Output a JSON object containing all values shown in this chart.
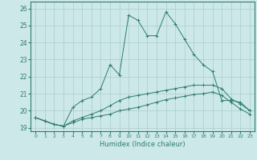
{
  "background_color": "#cde8e8",
  "grid_color": "#aacccc",
  "line_color": "#2e7d6e",
  "xlabel": "Humidex (Indice chaleur)",
  "ylim": [
    18.8,
    26.4
  ],
  "xlim": [
    -0.5,
    23.5
  ],
  "yticks": [
    19,
    20,
    21,
    22,
    23,
    24,
    25,
    26
  ],
  "xticks": [
    0,
    1,
    2,
    3,
    4,
    5,
    6,
    7,
    8,
    9,
    10,
    11,
    12,
    13,
    14,
    15,
    16,
    17,
    18,
    19,
    20,
    21,
    22,
    23
  ],
  "series": [
    [
      19.6,
      19.4,
      19.2,
      19.1,
      20.2,
      20.6,
      20.8,
      21.3,
      22.7,
      22.1,
      25.6,
      25.3,
      24.4,
      24.4,
      25.8,
      25.1,
      24.2,
      23.3,
      22.7,
      22.3,
      20.6,
      20.6,
      20.5,
      20.0
    ],
    [
      19.6,
      19.4,
      19.2,
      19.1,
      19.4,
      19.6,
      19.8,
      20.0,
      20.3,
      20.6,
      20.8,
      20.9,
      21.0,
      21.1,
      21.2,
      21.3,
      21.4,
      21.5,
      21.5,
      21.5,
      21.3,
      20.7,
      20.4,
      20.0
    ],
    [
      19.6,
      19.4,
      19.2,
      19.1,
      19.3,
      19.5,
      19.6,
      19.7,
      19.8,
      20.0,
      20.1,
      20.2,
      20.35,
      20.5,
      20.65,
      20.75,
      20.85,
      20.95,
      21.0,
      21.1,
      20.9,
      20.5,
      20.1,
      19.8
    ]
  ],
  "marker": "+",
  "figsize": [
    3.2,
    2.0
  ],
  "dpi": 100
}
